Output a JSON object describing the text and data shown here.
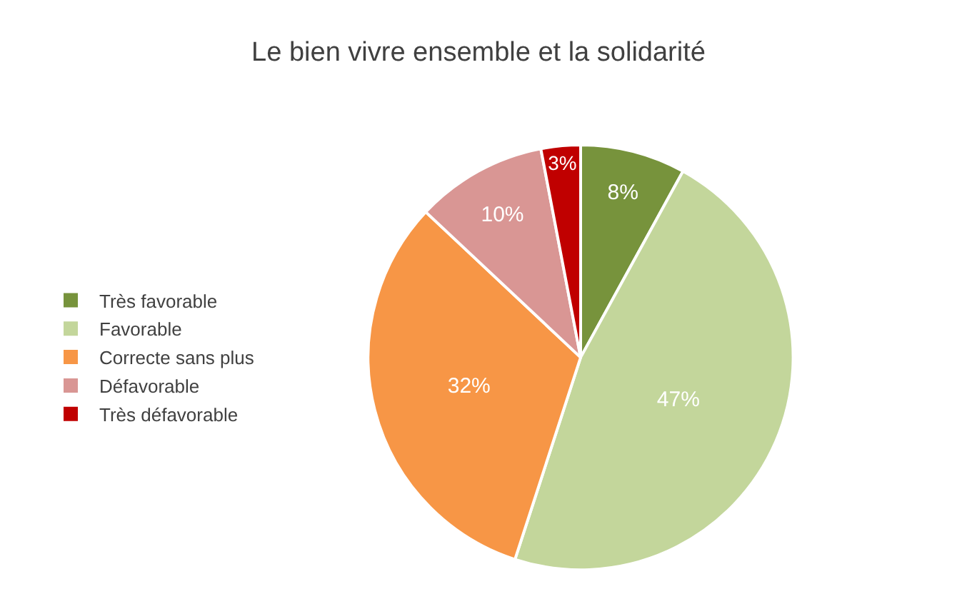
{
  "chart_data": {
    "type": "pie",
    "title": "Le bien vivre ensemble et la solidarité",
    "categories": [
      "Très favorable",
      "Favorable",
      "Correcte sans plus",
      "Défavorable",
      "Très défavorable"
    ],
    "values": [
      8,
      47,
      32,
      10,
      3
    ],
    "value_labels": [
      "8%",
      "47%",
      "32%",
      "10%",
      "3%"
    ],
    "colors": [
      "#77933c",
      "#c3d69b",
      "#f79646",
      "#d99694",
      "#c00000"
    ],
    "legend": "left"
  }
}
